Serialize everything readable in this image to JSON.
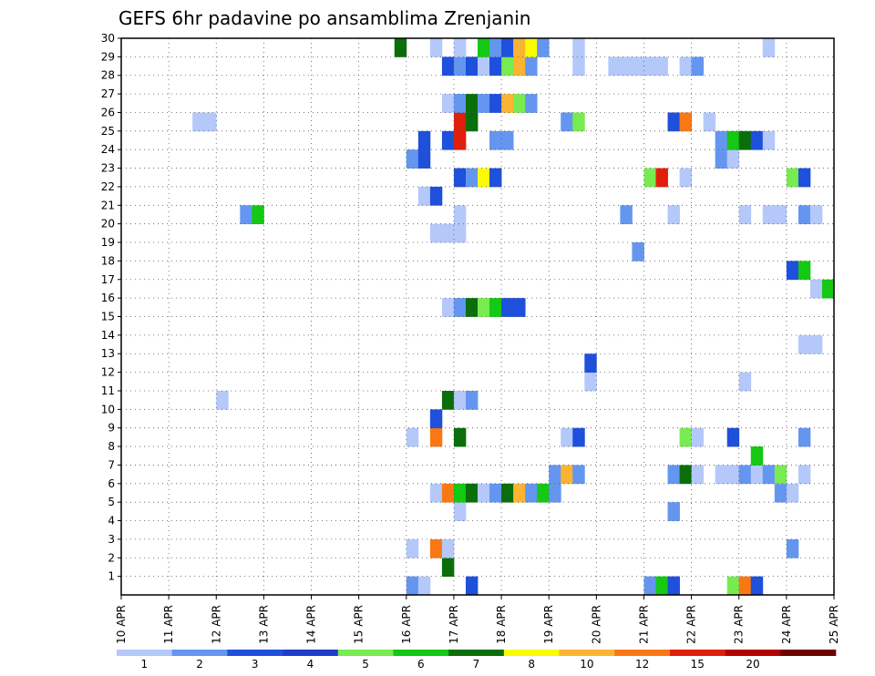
{
  "chart_data": {
    "type": "heatmap",
    "title": "GEFS 6hr padavine po ansamblima Zrenjanin",
    "x": [
      "10 APR",
      "11 APR",
      "12 APR",
      "13 APR",
      "14 APR",
      "15 APR",
      "16 APR",
      "17 APR",
      "18 APR",
      "19 APR",
      "20 APR",
      "21 APR",
      "22 APR",
      "23 APR",
      "24 APR",
      "25 APR"
    ],
    "y": [
      1,
      2,
      3,
      4,
      5,
      6,
      7,
      8,
      9,
      10,
      11,
      12,
      13,
      14,
      15,
      16,
      17,
      18,
      19,
      20,
      21,
      22,
      23,
      24,
      25,
      26,
      27,
      28,
      29,
      30
    ],
    "xlim": [
      "10 APR 00",
      "25 APR 00"
    ],
    "ylim": [
      0,
      30
    ],
    "grid": true,
    "colorbar": {
      "labels": [
        "1",
        "2",
        "3",
        "4",
        "5",
        "6",
        "7",
        "8",
        "10",
        "12",
        "15",
        "20"
      ],
      "colors": [
        "#b4c8fa",
        "#6496f0",
        "#1e50dc",
        "#1e3cc8",
        "#78eb50",
        "#14c814",
        "#0a6e0a",
        "#fafa00",
        "#fab432",
        "#fa7814",
        "#e11e0a",
        "#b40000",
        "#6e0000"
      ]
    },
    "cells_note": "",
    "cells": [
      {
        "day": "16 APR",
        "h": 0,
        "member": 0,
        "color": "#6496f0"
      },
      {
        "day": "16 APR",
        "h": 6,
        "member": 0,
        "color": "#b4c8fa"
      },
      {
        "day": "17 APR",
        "h": 6,
        "member": 0,
        "color": "#1e50dc"
      },
      {
        "day": "21 APR",
        "h": 0,
        "member": 0,
        "color": "#6496f0"
      },
      {
        "day": "21 APR",
        "h": 6,
        "member": 0,
        "color": "#14c814"
      },
      {
        "day": "21 APR",
        "h": 12,
        "member": 0,
        "color": "#1e50dc"
      },
      {
        "day": "22 APR",
        "h": 18,
        "member": 0,
        "color": "#78eb50"
      },
      {
        "day": "23 APR",
        "h": 0,
        "member": 0,
        "color": "#fa7814"
      },
      {
        "day": "23 APR",
        "h": 6,
        "member": 0,
        "color": "#1e50dc"
      },
      {
        "day": "16 APR",
        "h": 18,
        "member": 1,
        "color": "#0a6e0a"
      },
      {
        "day": "16 APR",
        "h": 0,
        "member": 2,
        "color": "#b4c8fa"
      },
      {
        "day": "16 APR",
        "h": 12,
        "member": 2,
        "color": "#fa7814"
      },
      {
        "day": "16 APR",
        "h": 18,
        "member": 2,
        "color": "#b4c8fa"
      },
      {
        "day": "24 APR",
        "h": 0,
        "member": 2,
        "color": "#6496f0"
      },
      {
        "day": "17 APR",
        "h": 0,
        "member": 4,
        "color": "#b4c8fa"
      },
      {
        "day": "21 APR",
        "h": 12,
        "member": 4,
        "color": "#6496f0"
      },
      {
        "day": "16 APR",
        "h": 12,
        "member": 5,
        "color": "#b4c8fa"
      },
      {
        "day": "16 APR",
        "h": 18,
        "member": 5,
        "color": "#fa7814"
      },
      {
        "day": "17 APR",
        "h": 0,
        "member": 5,
        "color": "#14c814"
      },
      {
        "day": "17 APR",
        "h": 6,
        "member": 5,
        "color": "#0a6e0a"
      },
      {
        "day": "17 APR",
        "h": 12,
        "member": 5,
        "color": "#b4c8fa"
      },
      {
        "day": "17 APR",
        "h": 18,
        "member": 5,
        "color": "#6496f0"
      },
      {
        "day": "18 APR",
        "h": 0,
        "member": 5,
        "color": "#0a6e0a"
      },
      {
        "day": "18 APR",
        "h": 6,
        "member": 5,
        "color": "#fab432"
      },
      {
        "day": "18 APR",
        "h": 12,
        "member": 5,
        "color": "#6496f0"
      },
      {
        "day": "18 APR",
        "h": 18,
        "member": 5,
        "color": "#14c814"
      },
      {
        "day": "19 APR",
        "h": 0,
        "member": 5,
        "color": "#6496f0"
      },
      {
        "day": "23 APR",
        "h": 18,
        "member": 5,
        "color": "#6496f0"
      },
      {
        "day": "24 APR",
        "h": 0,
        "member": 5,
        "color": "#b4c8fa"
      },
      {
        "day": "19 APR",
        "h": 0,
        "member": 6,
        "color": "#6496f0"
      },
      {
        "day": "19 APR",
        "h": 6,
        "member": 6,
        "color": "#fab432"
      },
      {
        "day": "19 APR",
        "h": 12,
        "member": 6,
        "color": "#6496f0"
      },
      {
        "day": "21 APR",
        "h": 12,
        "member": 6,
        "color": "#6496f0"
      },
      {
        "day": "21 APR",
        "h": 18,
        "member": 6,
        "color": "#0a6e0a"
      },
      {
        "day": "22 APR",
        "h": 0,
        "member": 6,
        "color": "#b4c8fa"
      },
      {
        "day": "22 APR",
        "h": 12,
        "member": 6,
        "color": "#b4c8fa"
      },
      {
        "day": "22 APR",
        "h": 18,
        "member": 6,
        "color": "#b4c8fa"
      },
      {
        "day": "23 APR",
        "h": 0,
        "member": 6,
        "color": "#6496f0"
      },
      {
        "day": "23 APR",
        "h": 6,
        "member": 6,
        "color": "#b4c8fa"
      },
      {
        "day": "23 APR",
        "h": 12,
        "member": 6,
        "color": "#6496f0"
      },
      {
        "day": "23 APR",
        "h": 18,
        "member": 6,
        "color": "#78eb50"
      },
      {
        "day": "24 APR",
        "h": 6,
        "member": 6,
        "color": "#b4c8fa"
      },
      {
        "day": "23 APR",
        "h": 6,
        "member": 7,
        "color": "#14c814"
      },
      {
        "day": "16 APR",
        "h": 0,
        "member": 8,
        "color": "#b4c8fa"
      },
      {
        "day": "16 APR",
        "h": 12,
        "member": 8,
        "color": "#fa7814"
      },
      {
        "day": "17 APR",
        "h": 0,
        "member": 8,
        "color": "#0a6e0a"
      },
      {
        "day": "19 APR",
        "h": 6,
        "member": 8,
        "color": "#b4c8fa"
      },
      {
        "day": "19 APR",
        "h": 12,
        "member": 8,
        "color": "#1e50dc"
      },
      {
        "day": "21 APR",
        "h": 18,
        "member": 8,
        "color": "#78eb50"
      },
      {
        "day": "22 APR",
        "h": 0,
        "member": 8,
        "color": "#b4c8fa"
      },
      {
        "day": "22 APR",
        "h": 18,
        "member": 8,
        "color": "#1e50dc"
      },
      {
        "day": "24 APR",
        "h": 6,
        "member": 8,
        "color": "#6496f0"
      },
      {
        "day": "16 APR",
        "h": 12,
        "member": 9,
        "color": "#1e50dc"
      },
      {
        "day": "12 APR",
        "h": 0,
        "member": 10,
        "color": "#b4c8fa"
      },
      {
        "day": "16 APR",
        "h": 18,
        "member": 10,
        "color": "#0a6e0a"
      },
      {
        "day": "17 APR",
        "h": 0,
        "member": 10,
        "color": "#b4c8fa"
      },
      {
        "day": "17 APR",
        "h": 6,
        "member": 10,
        "color": "#6496f0"
      },
      {
        "day": "19 APR",
        "h": 18,
        "member": 11,
        "color": "#b4c8fa"
      },
      {
        "day": "23 APR",
        "h": 0,
        "member": 11,
        "color": "#b4c8fa"
      },
      {
        "day": "19 APR",
        "h": 18,
        "member": 12,
        "color": "#1e50dc"
      },
      {
        "day": "24 APR",
        "h": 6,
        "member": 13,
        "color": "#b4c8fa"
      },
      {
        "day": "24 APR",
        "h": 12,
        "member": 13,
        "color": "#b4c8fa"
      },
      {
        "day": "16 APR",
        "h": 18,
        "member": 15,
        "color": "#b4c8fa"
      },
      {
        "day": "17 APR",
        "h": 0,
        "member": 15,
        "color": "#6496f0"
      },
      {
        "day": "17 APR",
        "h": 6,
        "member": 15,
        "color": "#0a6e0a"
      },
      {
        "day": "17 APR",
        "h": 12,
        "member": 15,
        "color": "#78eb50"
      },
      {
        "day": "17 APR",
        "h": 18,
        "member": 15,
        "color": "#14c814"
      },
      {
        "day": "18 APR",
        "h": 0,
        "member": 15,
        "color": "#1e50dc"
      },
      {
        "day": "18 APR",
        "h": 6,
        "member": 15,
        "color": "#1e50dc"
      },
      {
        "day": "24 APR",
        "h": 12,
        "member": 16,
        "color": "#b4c8fa"
      },
      {
        "day": "24 APR",
        "h": 18,
        "member": 16,
        "color": "#14c814"
      },
      {
        "day": "24 APR",
        "h": 0,
        "member": 17,
        "color": "#1e50dc"
      },
      {
        "day": "24 APR",
        "h": 6,
        "member": 17,
        "color": "#14c814"
      },
      {
        "day": "20 APR",
        "h": 18,
        "member": 18,
        "color": "#6496f0"
      },
      {
        "day": "16 APR",
        "h": 12,
        "member": 19,
        "color": "#b4c8fa"
      },
      {
        "day": "16 APR",
        "h": 18,
        "member": 19,
        "color": "#b4c8fa"
      },
      {
        "day": "17 APR",
        "h": 0,
        "member": 19,
        "color": "#b4c8fa"
      },
      {
        "day": "12 APR",
        "h": 12,
        "member": 20,
        "color": "#6496f0"
      },
      {
        "day": "12 APR",
        "h": 18,
        "member": 20,
        "color": "#14c814"
      },
      {
        "day": "17 APR",
        "h": 0,
        "member": 20,
        "color": "#b4c8fa"
      },
      {
        "day": "20 APR",
        "h": 12,
        "member": 20,
        "color": "#6496f0"
      },
      {
        "day": "21 APR",
        "h": 12,
        "member": 20,
        "color": "#b4c8fa"
      },
      {
        "day": "23 APR",
        "h": 0,
        "member": 20,
        "color": "#b4c8fa"
      },
      {
        "day": "23 APR",
        "h": 12,
        "member": 20,
        "color": "#b4c8fa"
      },
      {
        "day": "23 APR",
        "h": 18,
        "member": 20,
        "color": "#b4c8fa"
      },
      {
        "day": "24 APR",
        "h": 6,
        "member": 20,
        "color": "#6496f0"
      },
      {
        "day": "24 APR",
        "h": 12,
        "member": 20,
        "color": "#b4c8fa"
      },
      {
        "day": "16 APR",
        "h": 6,
        "member": 21,
        "color": "#b4c8fa"
      },
      {
        "day": "16 APR",
        "h": 12,
        "member": 21,
        "color": "#1e50dc"
      },
      {
        "day": "17 APR",
        "h": 0,
        "member": 22,
        "color": "#1e50dc"
      },
      {
        "day": "17 APR",
        "h": 6,
        "member": 22,
        "color": "#6496f0"
      },
      {
        "day": "17 APR",
        "h": 12,
        "member": 22,
        "color": "#fafa00"
      },
      {
        "day": "17 APR",
        "h": 18,
        "member": 22,
        "color": "#1e50dc"
      },
      {
        "day": "21 APR",
        "h": 0,
        "member": 22,
        "color": "#78eb50"
      },
      {
        "day": "21 APR",
        "h": 6,
        "member": 22,
        "color": "#e11e0a"
      },
      {
        "day": "21 APR",
        "h": 18,
        "member": 22,
        "color": "#b4c8fa"
      },
      {
        "day": "24 APR",
        "h": 0,
        "member": 22,
        "color": "#78eb50"
      },
      {
        "day": "24 APR",
        "h": 6,
        "member": 22,
        "color": "#1e50dc"
      },
      {
        "day": "16 APR",
        "h": 0,
        "member": 23,
        "color": "#6496f0"
      },
      {
        "day": "16 APR",
        "h": 6,
        "member": 23,
        "color": "#1e50dc"
      },
      {
        "day": "22 APR",
        "h": 12,
        "member": 23,
        "color": "#6496f0"
      },
      {
        "day": "22 APR",
        "h": 18,
        "member": 23,
        "color": "#b4c8fa"
      },
      {
        "day": "16 APR",
        "h": 6,
        "member": 24,
        "color": "#1e50dc"
      },
      {
        "day": "16 APR",
        "h": 18,
        "member": 24,
        "color": "#1e50dc"
      },
      {
        "day": "17 APR",
        "h": 0,
        "member": 24,
        "color": "#e11e0a"
      },
      {
        "day": "17 APR",
        "h": 18,
        "member": 24,
        "color": "#6496f0"
      },
      {
        "day": "18 APR",
        "h": 0,
        "member": 24,
        "color": "#6496f0"
      },
      {
        "day": "22 APR",
        "h": 12,
        "member": 24,
        "color": "#6496f0"
      },
      {
        "day": "22 APR",
        "h": 18,
        "member": 24,
        "color": "#14c814"
      },
      {
        "day": "23 APR",
        "h": 0,
        "member": 24,
        "color": "#0a6e0a"
      },
      {
        "day": "23 APR",
        "h": 6,
        "member": 24,
        "color": "#1e50dc"
      },
      {
        "day": "23 APR",
        "h": 12,
        "member": 24,
        "color": "#b4c8fa"
      },
      {
        "day": "11 APR",
        "h": 12,
        "member": 25,
        "color": "#b4c8fa"
      },
      {
        "day": "11 APR",
        "h": 18,
        "member": 25,
        "color": "#b4c8fa"
      },
      {
        "day": "17 APR",
        "h": 0,
        "member": 25,
        "color": "#e11e0a"
      },
      {
        "day": "17 APR",
        "h": 6,
        "member": 25,
        "color": "#0a6e0a"
      },
      {
        "day": "19 APR",
        "h": 6,
        "member": 25,
        "color": "#6496f0"
      },
      {
        "day": "19 APR",
        "h": 12,
        "member": 25,
        "color": "#78eb50"
      },
      {
        "day": "21 APR",
        "h": 12,
        "member": 25,
        "color": "#1e50dc"
      },
      {
        "day": "21 APR",
        "h": 18,
        "member": 25,
        "color": "#fa7814"
      },
      {
        "day": "22 APR",
        "h": 6,
        "member": 25,
        "color": "#b4c8fa"
      },
      {
        "day": "16 APR",
        "h": 18,
        "member": 26,
        "color": "#b4c8fa"
      },
      {
        "day": "17 APR",
        "h": 0,
        "member": 26,
        "color": "#6496f0"
      },
      {
        "day": "17 APR",
        "h": 6,
        "member": 26,
        "color": "#0a6e0a"
      },
      {
        "day": "17 APR",
        "h": 12,
        "member": 26,
        "color": "#6496f0"
      },
      {
        "day": "17 APR",
        "h": 18,
        "member": 26,
        "color": "#1e50dc"
      },
      {
        "day": "18 APR",
        "h": 0,
        "member": 26,
        "color": "#fab432"
      },
      {
        "day": "18 APR",
        "h": 6,
        "member": 26,
        "color": "#78eb50"
      },
      {
        "day": "18 APR",
        "h": 12,
        "member": 26,
        "color": "#6496f0"
      },
      {
        "day": "16 APR",
        "h": 18,
        "member": 28,
        "color": "#1e50dc"
      },
      {
        "day": "17 APR",
        "h": 0,
        "member": 28,
        "color": "#6496f0"
      },
      {
        "day": "17 APR",
        "h": 6,
        "member": 28,
        "color": "#1e50dc"
      },
      {
        "day": "17 APR",
        "h": 12,
        "member": 28,
        "color": "#b4c8fa"
      },
      {
        "day": "17 APR",
        "h": 18,
        "member": 28,
        "color": "#1e50dc"
      },
      {
        "day": "18 APR",
        "h": 0,
        "member": 28,
        "color": "#78eb50"
      },
      {
        "day": "18 APR",
        "h": 6,
        "member": 28,
        "color": "#fab432"
      },
      {
        "day": "18 APR",
        "h": 12,
        "member": 28,
        "color": "#6496f0"
      },
      {
        "day": "19 APR",
        "h": 12,
        "member": 28,
        "color": "#b4c8fa"
      },
      {
        "day": "20 APR",
        "h": 6,
        "member": 28,
        "color": "#b4c8fa"
      },
      {
        "day": "20 APR",
        "h": 12,
        "member": 28,
        "color": "#b4c8fa"
      },
      {
        "day": "20 APR",
        "h": 18,
        "member": 28,
        "color": "#b4c8fa"
      },
      {
        "day": "21 APR",
        "h": 0,
        "member": 28,
        "color": "#b4c8fa"
      },
      {
        "day": "21 APR",
        "h": 6,
        "member": 28,
        "color": "#b4c8fa"
      },
      {
        "day": "21 APR",
        "h": 18,
        "member": 28,
        "color": "#b4c8fa"
      },
      {
        "day": "22 APR",
        "h": 0,
        "member": 28,
        "color": "#6496f0"
      },
      {
        "day": "15 APR",
        "h": 18,
        "member": 29,
        "color": "#0a6e0a"
      },
      {
        "day": "16 APR",
        "h": 12,
        "member": 29,
        "color": "#b4c8fa"
      },
      {
        "day": "17 APR",
        "h": 0,
        "member": 29,
        "color": "#b4c8fa"
      },
      {
        "day": "17 APR",
        "h": 12,
        "member": 29,
        "color": "#14c814"
      },
      {
        "day": "17 APR",
        "h": 18,
        "member": 29,
        "color": "#6496f0"
      },
      {
        "day": "18 APR",
        "h": 0,
        "member": 29,
        "color": "#1e50dc"
      },
      {
        "day": "18 APR",
        "h": 6,
        "member": 29,
        "color": "#fab432"
      },
      {
        "day": "18 APR",
        "h": 12,
        "member": 29,
        "color": "#fafa00"
      },
      {
        "day": "18 APR",
        "h": 18,
        "member": 29,
        "color": "#6496f0"
      },
      {
        "day": "19 APR",
        "h": 12,
        "member": 29,
        "color": "#b4c8fa"
      },
      {
        "day": "23 APR",
        "h": 12,
        "member": 29,
        "color": "#b4c8fa"
      }
    ]
  }
}
